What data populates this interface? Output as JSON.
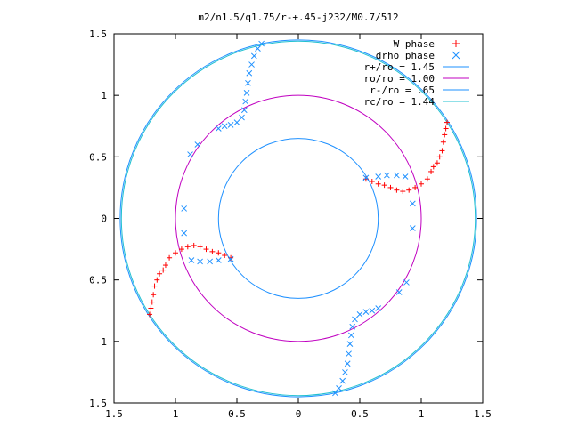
{
  "chart_data": {
    "type": "scatter",
    "title": "m2/n1.5/q1.75/r-+.45-j232/M0.7/512",
    "xlabel": "",
    "ylabel": "",
    "xlim": [
      -1.5,
      1.5
    ],
    "ylim": [
      -1.5,
      1.5
    ],
    "x_ticks": [
      "1.5",
      "1",
      "0.5",
      "0",
      "0.5",
      "1",
      "1.5"
    ],
    "y_ticks": [
      "1.5",
      "1",
      "0.5",
      "0",
      "0.5",
      "1",
      "1.5"
    ],
    "grid": false,
    "legend_position": "top-right",
    "colors": {
      "w_phase": "#ff0000",
      "drho_phase": "#1e90ff",
      "r_plus": "#1e90ff",
      "ro": "#c000c0",
      "r_minus": "#1e90ff",
      "rc": "#20c0d0"
    },
    "legend": [
      {
        "label": "W phase",
        "key": "w_phase",
        "marker": "plus"
      },
      {
        "label": "drho phase",
        "key": "drho_phase",
        "marker": "cross"
      },
      {
        "label": "r+/ro = 1.45",
        "key": "r_plus",
        "marker": "line"
      },
      {
        "label": "ro/ro = 1.00",
        "key": "ro",
        "marker": "line"
      },
      {
        "label": "r-/ro = .65",
        "key": "r_minus",
        "marker": "line"
      },
      {
        "label": "rc/ro = 1.44",
        "key": "rc",
        "marker": "line"
      }
    ],
    "circles": [
      {
        "name": "r+/ro = 1.45",
        "radius": 1.45,
        "key": "r_plus"
      },
      {
        "name": "ro/ro = 1.00",
        "radius": 1.0,
        "key": "ro"
      },
      {
        "name": "r-/ro = .65",
        "radius": 0.65,
        "key": "r_minus"
      },
      {
        "name": "rc/ro = 1.44",
        "radius": 1.44,
        "key": "rc"
      }
    ],
    "series": [
      {
        "name": "W phase",
        "key": "w_phase",
        "marker": "plus",
        "points": [
          [
            0.55,
            0.32
          ],
          [
            0.6,
            0.3
          ],
          [
            0.65,
            0.28
          ],
          [
            0.7,
            0.27
          ],
          [
            0.75,
            0.25
          ],
          [
            0.8,
            0.23
          ],
          [
            0.85,
            0.22
          ],
          [
            0.9,
            0.23
          ],
          [
            0.95,
            0.25
          ],
          [
            1.0,
            0.28
          ],
          [
            1.05,
            0.32
          ],
          [
            1.08,
            0.38
          ],
          [
            1.1,
            0.42
          ],
          [
            1.13,
            0.45
          ],
          [
            1.15,
            0.5
          ],
          [
            1.17,
            0.55
          ],
          [
            1.18,
            0.62
          ],
          [
            1.19,
            0.68
          ],
          [
            1.2,
            0.73
          ],
          [
            1.21,
            0.78
          ],
          [
            -0.55,
            -0.32
          ],
          [
            -0.6,
            -0.3
          ],
          [
            -0.65,
            -0.28
          ],
          [
            -0.7,
            -0.27
          ],
          [
            -0.75,
            -0.25
          ],
          [
            -0.8,
            -0.23
          ],
          [
            -0.85,
            -0.22
          ],
          [
            -0.9,
            -0.23
          ],
          [
            -0.95,
            -0.25
          ],
          [
            -1.0,
            -0.28
          ],
          [
            -1.05,
            -0.32
          ],
          [
            -1.08,
            -0.38
          ],
          [
            -1.1,
            -0.42
          ],
          [
            -1.13,
            -0.45
          ],
          [
            -1.15,
            -0.5
          ],
          [
            -1.17,
            -0.55
          ],
          [
            -1.18,
            -0.62
          ],
          [
            -1.19,
            -0.68
          ],
          [
            -1.2,
            -0.73
          ],
          [
            -1.21,
            -0.78
          ]
        ]
      },
      {
        "name": "drho phase",
        "key": "drho_phase",
        "marker": "cross",
        "points": [
          [
            -0.3,
            1.42
          ],
          [
            -0.33,
            1.38
          ],
          [
            -0.36,
            1.32
          ],
          [
            -0.38,
            1.25
          ],
          [
            -0.4,
            1.18
          ],
          [
            -0.41,
            1.1
          ],
          [
            -0.42,
            1.02
          ],
          [
            -0.43,
            0.95
          ],
          [
            -0.44,
            0.88
          ],
          [
            -0.46,
            0.82
          ],
          [
            -0.5,
            0.78
          ],
          [
            -0.55,
            0.76
          ],
          [
            -0.6,
            0.75
          ],
          [
            -0.65,
            0.73
          ],
          [
            0.3,
            -1.42
          ],
          [
            0.33,
            -1.38
          ],
          [
            0.36,
            -1.32
          ],
          [
            0.38,
            -1.25
          ],
          [
            0.4,
            -1.18
          ],
          [
            0.41,
            -1.1
          ],
          [
            0.42,
            -1.02
          ],
          [
            0.43,
            -0.95
          ],
          [
            0.44,
            -0.88
          ],
          [
            0.46,
            -0.82
          ],
          [
            0.5,
            -0.78
          ],
          [
            0.55,
            -0.76
          ],
          [
            0.6,
            -0.75
          ],
          [
            0.65,
            -0.73
          ],
          [
            0.55,
            0.33
          ],
          [
            0.65,
            0.34
          ],
          [
            0.72,
            0.35
          ],
          [
            0.8,
            0.35
          ],
          [
            0.87,
            0.34
          ],
          [
            0.93,
            0.12
          ],
          [
            0.93,
            -0.08
          ],
          [
            0.88,
            -0.52
          ],
          [
            0.82,
            -0.6
          ],
          [
            -0.55,
            -0.33
          ],
          [
            -0.65,
            -0.34
          ],
          [
            -0.72,
            -0.35
          ],
          [
            -0.8,
            -0.35
          ],
          [
            -0.87,
            -0.34
          ],
          [
            -0.93,
            -0.12
          ],
          [
            -0.93,
            0.08
          ],
          [
            -0.88,
            0.52
          ],
          [
            -0.82,
            0.6
          ]
        ]
      }
    ]
  }
}
